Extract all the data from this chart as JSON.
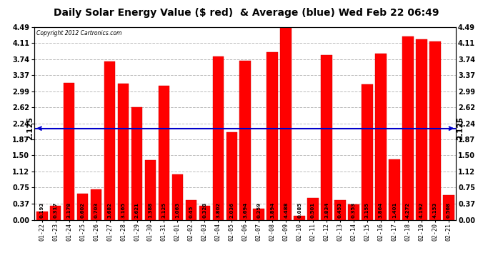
{
  "title": "Daily Solar Energy Value ($ red)  & Average (blue) Wed Feb 22 06:49",
  "copyright": "Copyright 2012 Cartronics.com",
  "categories": [
    "01-22",
    "01-23",
    "01-24",
    "01-25",
    "01-26",
    "01-27",
    "01-28",
    "01-29",
    "01-30",
    "01-31",
    "02-01",
    "02-02",
    "02-03",
    "02-04",
    "02-05",
    "02-06",
    "02-07",
    "02-08",
    "02-09",
    "02-10",
    "02-11",
    "02-12",
    "02-13",
    "02-14",
    "02-15",
    "02-16",
    "02-17",
    "02-18",
    "02-19",
    "02-20",
    "02-21"
  ],
  "values": [
    0.193,
    0.317,
    3.178,
    0.602,
    0.703,
    3.682,
    3.165,
    2.621,
    1.388,
    3.125,
    1.063,
    0.45,
    0.328,
    3.802,
    2.036,
    3.694,
    0.259,
    3.894,
    4.488,
    0.085,
    0.501,
    3.834,
    0.453,
    0.353,
    3.155,
    3.864,
    1.401,
    4.272,
    4.192,
    4.153,
    0.568
  ],
  "average": 2.125,
  "bar_color": "#FF0000",
  "avg_line_color": "#0000CC",
  "bg_color": "#FFFFFF",
  "plot_bg_color": "#FFFFFF",
  "grid_color": "#BBBBBB",
  "ylim": [
    0.0,
    4.49
  ],
  "yticks": [
    0.0,
    0.37,
    0.75,
    1.12,
    1.5,
    1.87,
    2.24,
    2.62,
    2.99,
    3.37,
    3.74,
    4.11,
    4.49
  ],
  "title_fontsize": 10,
  "bar_label_fontsize": 5.0,
  "avg_label": "2.125",
  "avg_label_fontsize": 7.5
}
